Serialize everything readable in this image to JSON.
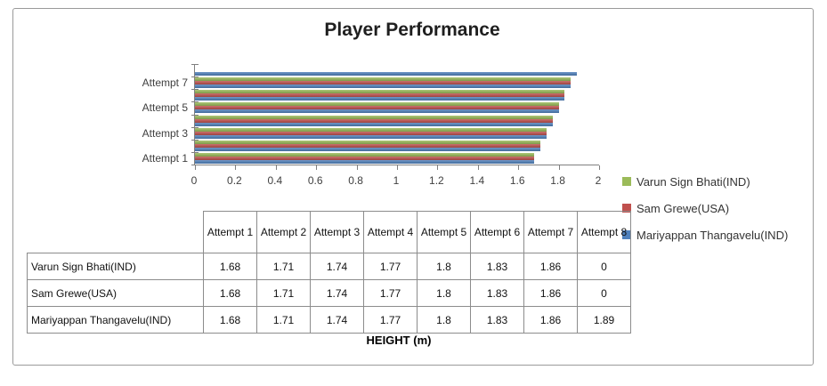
{
  "chart_data": {
    "type": "bar",
    "orientation": "horizontal",
    "title": "Player Performance",
    "xlabel": "HEIGHT (m)",
    "categories": [
      "Attempt 1",
      "Attempt 2",
      "Attempt 3",
      "Attempt 4",
      "Attempt 5",
      "Attempt 6",
      "Attempt 7",
      "Attempt 8"
    ],
    "visible_category_labels": [
      "Attempt 1",
      "Attempt 3",
      "Attempt 5",
      "Attempt 7"
    ],
    "series": [
      {
        "name": "Varun Sign Bhati(IND)",
        "color": "#9BBB59",
        "values": [
          1.68,
          1.71,
          1.74,
          1.77,
          1.8,
          1.83,
          1.86,
          0
        ]
      },
      {
        "name": "Sam Grewe(USA)",
        "color": "#C0504D",
        "values": [
          1.68,
          1.71,
          1.74,
          1.77,
          1.8,
          1.83,
          1.86,
          0
        ]
      },
      {
        "name": "Mariyappan Thangavelu(IND)",
        "color": "#4F81BD",
        "values": [
          1.68,
          1.71,
          1.74,
          1.77,
          1.8,
          1.83,
          1.86,
          1.89
        ]
      }
    ],
    "xlim": [
      0,
      2
    ],
    "xticks": [
      "0",
      "0.2",
      "0.4",
      "0.6",
      "0.8",
      "1",
      "1.2",
      "1.4",
      "1.6",
      "1.8",
      "2"
    ],
    "grid": false,
    "legend_position": "right"
  },
  "table": {
    "col_headers": [
      "Attempt 1",
      "Attempt 2",
      "Attempt 3",
      "Attempt 4",
      "Attempt 5",
      "Attempt 6",
      "Attempt 7",
      "Attempt 8"
    ],
    "rows": [
      {
        "name": "Varun Sign Bhati(IND)",
        "values": [
          "1.68",
          "1.71",
          "1.74",
          "1.77",
          "1.8",
          "1.83",
          "1.86",
          "0"
        ]
      },
      {
        "name": "Sam Grewe(USA)",
        "values": [
          "1.68",
          "1.71",
          "1.74",
          "1.77",
          "1.8",
          "1.83",
          "1.86",
          "0"
        ]
      },
      {
        "name": "Mariyappan Thangavelu(IND)",
        "values": [
          "1.68",
          "1.71",
          "1.74",
          "1.77",
          "1.8",
          "1.83",
          "1.86",
          "1.89"
        ]
      }
    ]
  }
}
